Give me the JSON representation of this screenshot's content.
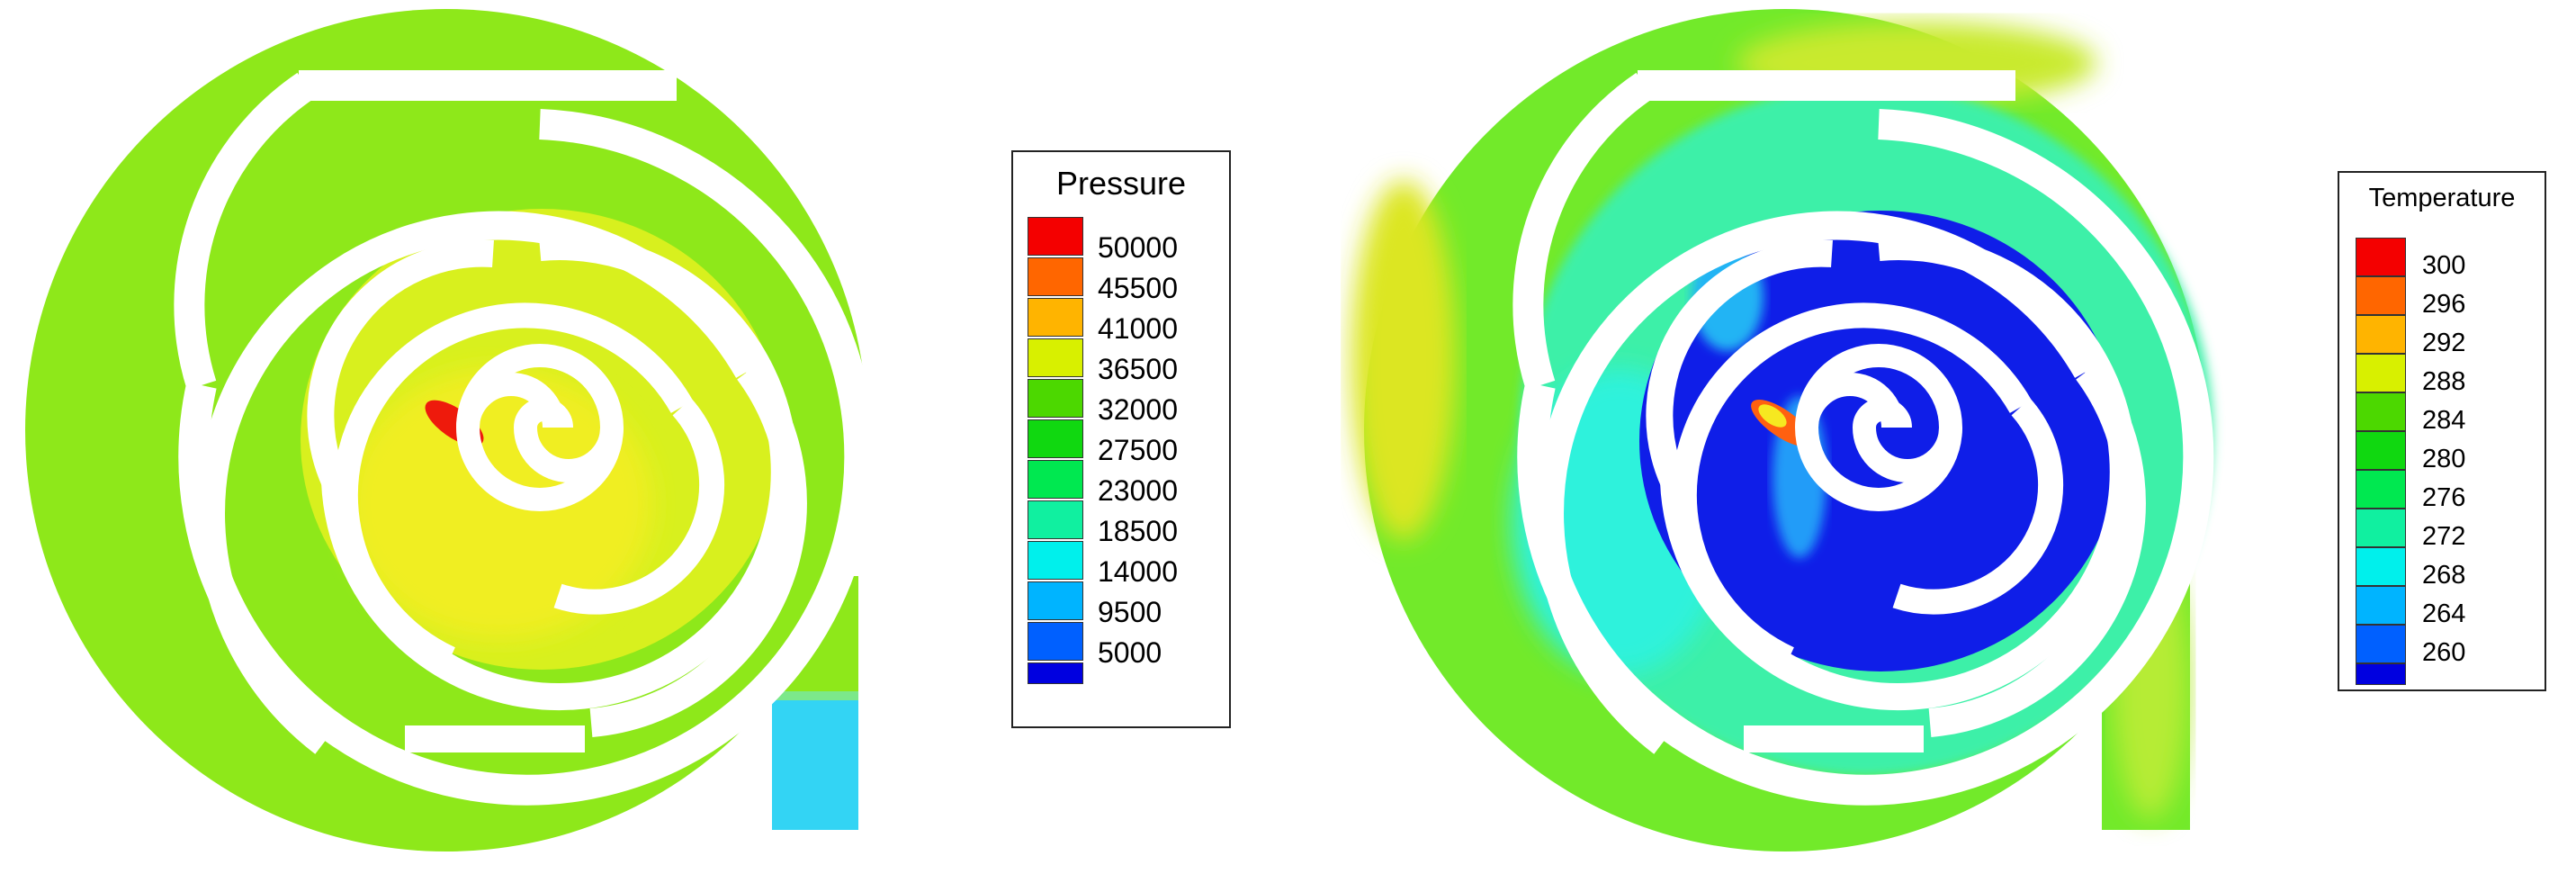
{
  "figure": {
    "panels": [
      {
        "variable": "Pressure",
        "field_colors": {
          "outer": "#8ee81a",
          "core": "#d8f01e",
          "core_warm": "#f0ee20",
          "hotspot": "#ee1a0c",
          "outlet": "#33d4f4"
        }
      },
      {
        "variable": "Temperature",
        "field_colors": {
          "outer": "#72ea2a",
          "mid": "#3ef0a8",
          "core": "#0f1ee8",
          "warm": "#dce622",
          "hotspot": "#ff6010"
        }
      }
    ]
  },
  "legends": {
    "pressure": {
      "title": "Pressure",
      "entries": [
        {
          "label": "50000",
          "color": "#f40000"
        },
        {
          "label": "45500",
          "color": "#ff6600"
        },
        {
          "label": "41000",
          "color": "#ffb400"
        },
        {
          "label": "36500",
          "color": "#d8f000"
        },
        {
          "label": "32000",
          "color": "#4cd800"
        },
        {
          "label": "27500",
          "color": "#10d810"
        },
        {
          "label": "23000",
          "color": "#00e850"
        },
        {
          "label": "18500",
          "color": "#10f0a0"
        },
        {
          "label": "14000",
          "color": "#00f0ec"
        },
        {
          "label": "9500",
          "color": "#00b4ff"
        },
        {
          "label": "5000",
          "color": "#0060ff"
        }
      ],
      "bottom_color": "#0000e0"
    },
    "temperature": {
      "title": "Temperature",
      "entries": [
        {
          "label": "300",
          "color": "#f40000"
        },
        {
          "label": "296",
          "color": "#ff6600"
        },
        {
          "label": "292",
          "color": "#ffb400"
        },
        {
          "label": "288",
          "color": "#d8f000"
        },
        {
          "label": "284",
          "color": "#4cd800"
        },
        {
          "label": "280",
          "color": "#10d810"
        },
        {
          "label": "276",
          "color": "#00e850"
        },
        {
          "label": "272",
          "color": "#10f0a0"
        },
        {
          "label": "268",
          "color": "#00f0ec"
        },
        {
          "label": "264",
          "color": "#00b4ff"
        },
        {
          "label": "260",
          "color": "#0060ff"
        }
      ],
      "bottom_color": "#0000e0"
    }
  }
}
